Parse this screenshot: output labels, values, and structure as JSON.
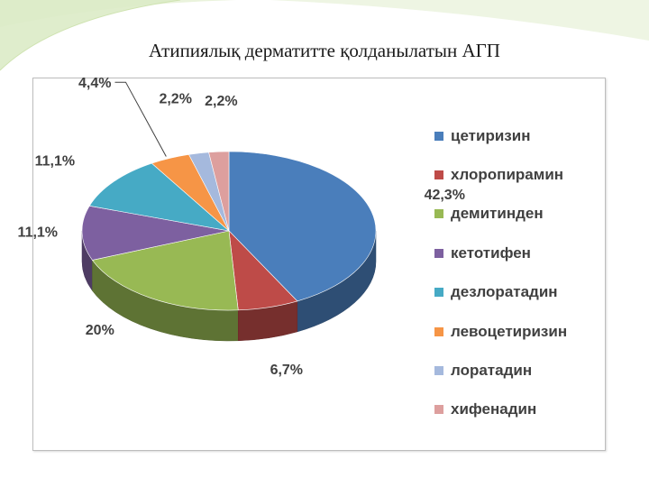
{
  "slide": {
    "title": "Атипиялық дерматитте қолданылатын АГП"
  },
  "chart_data": {
    "type": "pie",
    "style": "3d",
    "legend_position": "right",
    "slices": [
      {
        "name": "цетиризин",
        "value": 42.3,
        "label": "42,3%",
        "color": "#4a7ebb"
      },
      {
        "name": "хлоропирамин",
        "value": 6.7,
        "label": "6,7%",
        "color": "#be4b48"
      },
      {
        "name": "демитинден",
        "value": 20,
        "label": "20%",
        "color": "#98b954"
      },
      {
        "name": "кетотифен",
        "value": 11.1,
        "label": "11,1%",
        "color": "#7d60a0"
      },
      {
        "name": "дезлоратадин",
        "value": 11.1,
        "label": "11,1%",
        "color": "#46aac5"
      },
      {
        "name": "левоцетиризин",
        "value": 4.4,
        "label": "4,4%",
        "color": "#f69546"
      },
      {
        "name": "лоратадин",
        "value": 2.2,
        "label": "2,2%",
        "color": "#a5b9dd"
      },
      {
        "name": "хифенадин",
        "value": 2.2,
        "label": "2,2%",
        "color": "#dd9f9e"
      }
    ]
  }
}
